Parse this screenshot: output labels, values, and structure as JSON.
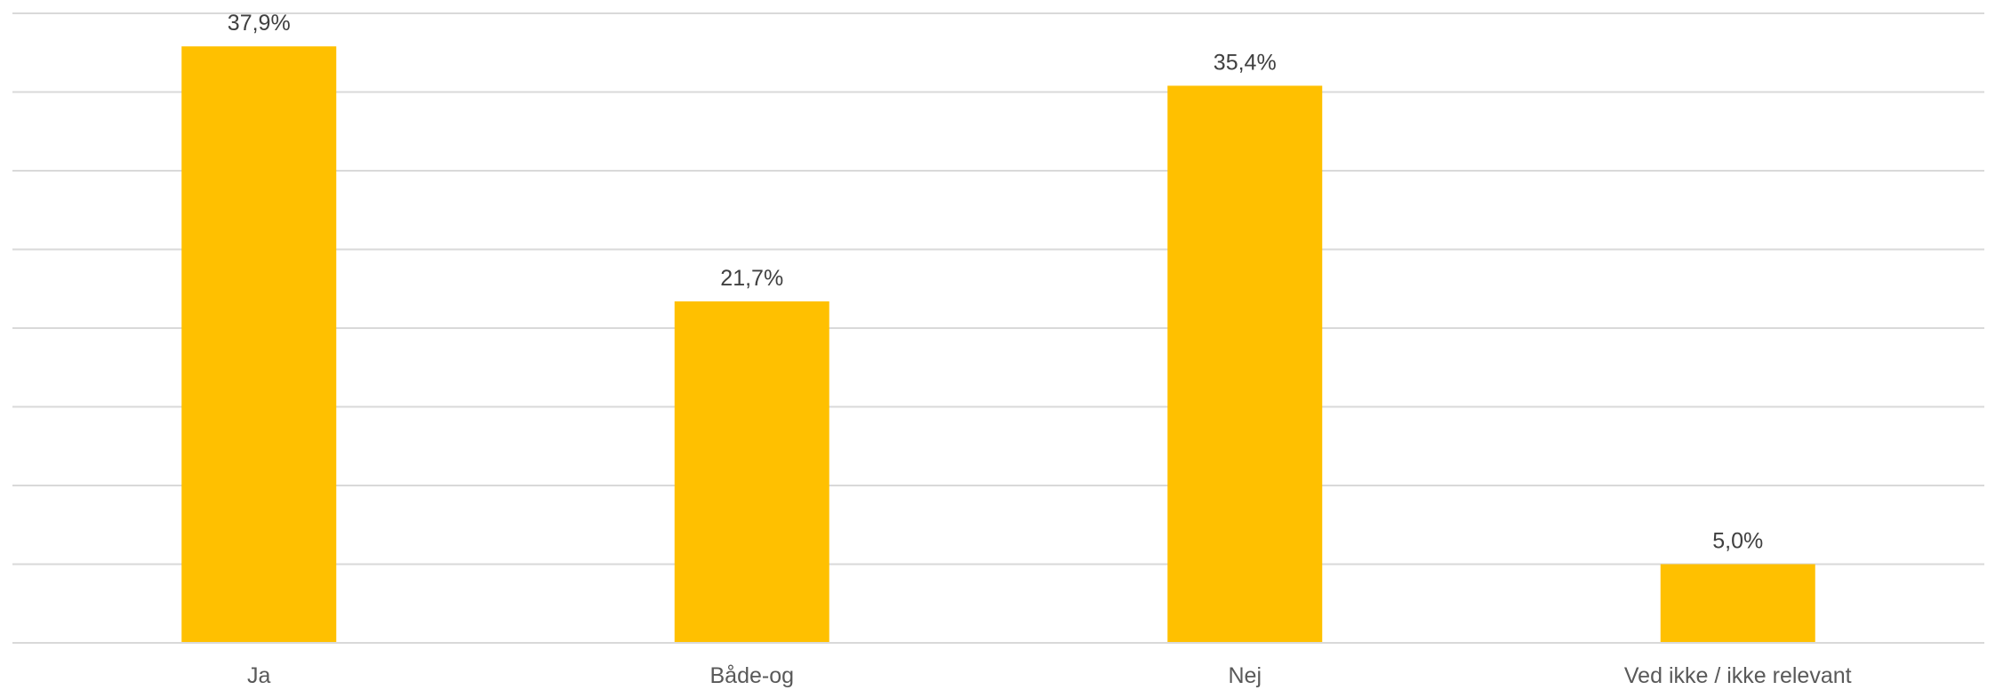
{
  "chart_data": {
    "type": "bar",
    "categories": [
      "Ja",
      "Både-og",
      "Nej",
      "Ved ikke / ikke relevant"
    ],
    "values": [
      37.9,
      21.7,
      35.4,
      5.0
    ],
    "data_labels": [
      "37,9%",
      "21,7%",
      "35,4%",
      "5,0%"
    ],
    "title": "",
    "xlabel": "",
    "ylabel": "",
    "ylim": [
      0,
      40
    ],
    "y_tick_step": 5,
    "grid": true,
    "legend": "none",
    "colors": {
      "bar": "#FFC000"
    }
  }
}
